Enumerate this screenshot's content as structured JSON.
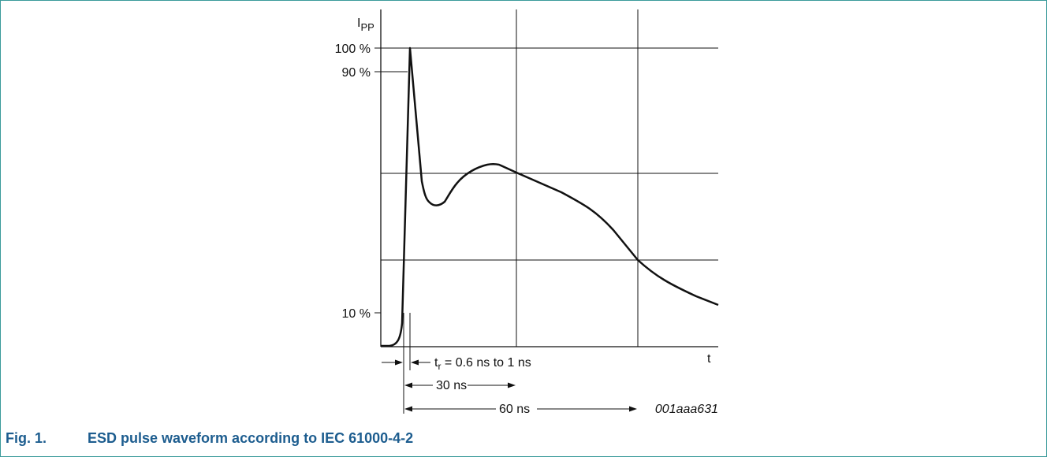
{
  "figure": {
    "y_axis_label_main": "I",
    "y_axis_label_sub": "PP",
    "x_axis_label": "t",
    "y_ticks": [
      "100 %",
      "90 %",
      "10 %"
    ],
    "rise_time_prefix": "t",
    "rise_time_sub": "r",
    "rise_time_text": " = 0.6 ns to 1 ns",
    "interval_30": "30 ns",
    "interval_60": "60 ns",
    "figure_id": "001aaa631",
    "caption_number": "Fig. 1.",
    "caption_text": "ESD pulse waveform according to IEC 61000-4-2",
    "colors": {
      "frame": "#3b9a9a",
      "caption": "#1d5d8f",
      "line": "#111111"
    }
  }
}
